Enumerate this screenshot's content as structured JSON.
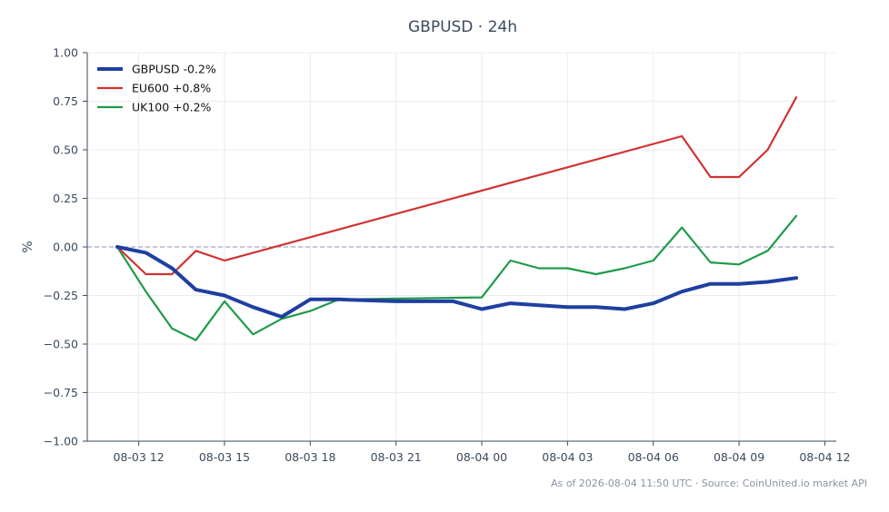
{
  "title": "GBPUSD · 24h",
  "footer": "As of 2026-08-04 11:50 UTC · Source: CoinUnited.io market API",
  "chart_data": {
    "type": "line",
    "title": "GBPUSD · 24h",
    "ylabel": "%",
    "ylim": [
      -1.0,
      1.0
    ],
    "yticks": [
      1.0,
      0.75,
      0.5,
      0.25,
      0.0,
      -0.25,
      -0.5,
      -0.75,
      -1.0
    ],
    "ytick_labels": [
      "1.00",
      "0.75",
      "0.50",
      "0.25",
      "0.00",
      "−0.25",
      "−0.50",
      "−0.75",
      "−1.00"
    ],
    "xlim": [
      "2026-08-03 10:12",
      "2026-08-04 12:24"
    ],
    "xticks": [
      "2026-08-03 12:00",
      "2026-08-03 15:00",
      "2026-08-03 18:00",
      "2026-08-03 21:00",
      "2026-08-04 00:00",
      "2026-08-04 03:00",
      "2026-08-04 06:00",
      "2026-08-04 09:00",
      "2026-08-04 12:00"
    ],
    "xtick_labels": [
      "08-03 12",
      "08-03 15",
      "08-03 18",
      "08-03 21",
      "08-04 00",
      "08-04 03",
      "08-04 06",
      "08-04 09",
      "08-04 12"
    ],
    "zero_line": true,
    "grid": true,
    "legend_position": "top-left",
    "series": [
      {
        "name": "GBPUSD -0.2%",
        "color": "#1f3fa0",
        "width": 4,
        "points": [
          [
            "2026-08-03 11:15",
            0.0
          ],
          [
            "2026-08-03 12:15",
            -0.03
          ],
          [
            "2026-08-03 13:10",
            -0.11
          ],
          [
            "2026-08-03 14:00",
            -0.22
          ],
          [
            "2026-08-03 15:00",
            -0.25
          ],
          [
            "2026-08-03 16:00",
            -0.31
          ],
          [
            "2026-08-03 17:00",
            -0.36
          ],
          [
            "2026-08-03 18:00",
            -0.27
          ],
          [
            "2026-08-03 19:00",
            -0.27
          ],
          [
            "2026-08-03 21:00",
            -0.28
          ],
          [
            "2026-08-03 23:00",
            -0.28
          ],
          [
            "2026-08-04 00:00",
            -0.32
          ],
          [
            "2026-08-04 01:00",
            -0.29
          ],
          [
            "2026-08-04 02:00",
            -0.3
          ],
          [
            "2026-08-04 03:00",
            -0.31
          ],
          [
            "2026-08-04 04:00",
            -0.31
          ],
          [
            "2026-08-04 05:00",
            -0.32
          ],
          [
            "2026-08-04 06:00",
            -0.29
          ],
          [
            "2026-08-04 07:00",
            -0.23
          ],
          [
            "2026-08-04 08:00",
            -0.19
          ],
          [
            "2026-08-04 09:00",
            -0.19
          ],
          [
            "2026-08-04 10:00",
            -0.18
          ],
          [
            "2026-08-04 11:00",
            -0.16
          ]
        ]
      },
      {
        "name": "EU600 +0.8%",
        "color": "#d03232",
        "width": 2.2,
        "points": [
          [
            "2026-08-03 11:15",
            0.0
          ],
          [
            "2026-08-03 12:15",
            -0.14
          ],
          [
            "2026-08-03 13:10",
            -0.14
          ],
          [
            "2026-08-03 14:00",
            -0.02
          ],
          [
            "2026-08-03 15:00",
            -0.07
          ],
          [
            "2026-08-04 07:00",
            0.57
          ],
          [
            "2026-08-04 08:00",
            0.36
          ],
          [
            "2026-08-04 09:00",
            0.36
          ],
          [
            "2026-08-04 10:00",
            0.5
          ],
          [
            "2026-08-04 11:00",
            0.77
          ]
        ]
      },
      {
        "name": "UK100 +0.2%",
        "color": "#1f9a4a",
        "width": 2.2,
        "points": [
          [
            "2026-08-03 11:15",
            0.0
          ],
          [
            "2026-08-03 12:15",
            -0.23
          ],
          [
            "2026-08-03 13:10",
            -0.42
          ],
          [
            "2026-08-03 14:00",
            -0.48
          ],
          [
            "2026-08-03 15:00",
            -0.28
          ],
          [
            "2026-08-03 16:00",
            -0.45
          ],
          [
            "2026-08-03 17:00",
            -0.37
          ],
          [
            "2026-08-03 18:00",
            -0.33
          ],
          [
            "2026-08-03 19:00",
            -0.27
          ],
          [
            "2026-08-04 00:00",
            -0.26
          ],
          [
            "2026-08-04 01:00",
            -0.07
          ],
          [
            "2026-08-04 02:00",
            -0.11
          ],
          [
            "2026-08-04 03:00",
            -0.11
          ],
          [
            "2026-08-04 04:00",
            -0.14
          ],
          [
            "2026-08-04 05:00",
            -0.11
          ],
          [
            "2026-08-04 06:00",
            -0.07
          ],
          [
            "2026-08-04 07:00",
            0.1
          ],
          [
            "2026-08-04 08:00",
            -0.08
          ],
          [
            "2026-08-04 09:00",
            -0.09
          ],
          [
            "2026-08-04 10:00",
            -0.02
          ],
          [
            "2026-08-04 11:00",
            0.16
          ]
        ]
      }
    ]
  }
}
